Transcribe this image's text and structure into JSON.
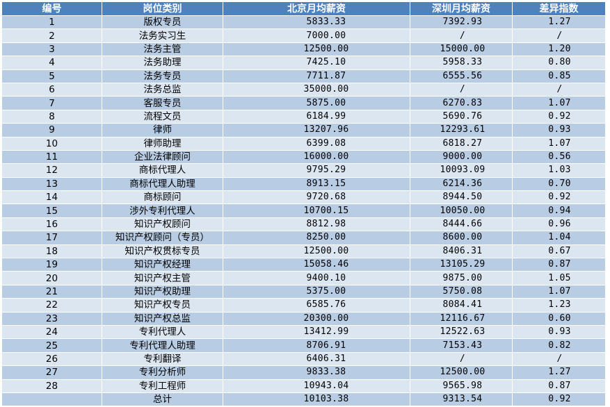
{
  "headers": [
    "编号",
    "岗位类别",
    "北京月均薪资",
    "深圳月均薪资",
    "差异指数"
  ],
  "rows": [
    [
      "1",
      "版权专员",
      "5833.33",
      "7392.93",
      "1.27"
    ],
    [
      "2",
      "法务实习生",
      "7000.00",
      "/",
      "/"
    ],
    [
      "3",
      "法务主管",
      "12500.00",
      "15000.00",
      "1.20"
    ],
    [
      "4",
      "法务助理",
      "7425.10",
      "5958.33",
      "0.80"
    ],
    [
      "5",
      "法务专员",
      "7711.87",
      "6555.56",
      "0.85"
    ],
    [
      "6",
      "法务总监",
      "35000.00",
      "/",
      "/"
    ],
    [
      "7",
      "客服专员",
      "5875.00",
      "6270.83",
      "1.07"
    ],
    [
      "8",
      "流程文员",
      "6184.99",
      "5690.76",
      "0.92"
    ],
    [
      "9",
      "律师",
      "13207.96",
      "12293.61",
      "0.93"
    ],
    [
      "10",
      "律师助理",
      "6399.08",
      "6818.27",
      "1.07"
    ],
    [
      "11",
      "企业法律顾问",
      "16000.00",
      "9000.00",
      "0.56"
    ],
    [
      "12",
      "商标代理人",
      "9795.29",
      "10093.09",
      "1.03"
    ],
    [
      "13",
      "商标代理人助理",
      "8913.15",
      "6214.36",
      "0.70"
    ],
    [
      "14",
      "商标顾问",
      "9720.68",
      "8944.50",
      "0.92"
    ],
    [
      "15",
      "涉外专利代理人",
      "10700.15",
      "10050.00",
      "0.94"
    ],
    [
      "16",
      "知识产权顾问",
      "8812.98",
      "8444.66",
      "0.96"
    ],
    [
      "17",
      "知识产权顾问（专员）",
      "8250.00",
      "8600.00",
      "1.04"
    ],
    [
      "18",
      "知识产权贯标专员",
      "12500.00",
      "8406.31",
      "0.67"
    ],
    [
      "19",
      "知识产权经理",
      "15058.46",
      "13105.29",
      "0.87"
    ],
    [
      "20",
      "知识产权主管",
      "9400.10",
      "9875.00",
      "1.05"
    ],
    [
      "21",
      "知识产权助理",
      "5375.00",
      "5750.08",
      "1.07"
    ],
    [
      "22",
      "知识产权专员",
      "6585.76",
      "8084.41",
      "1.23"
    ],
    [
      "23",
      "知识产权总监",
      "20300.00",
      "12116.67",
      "0.60"
    ],
    [
      "24",
      "专利代理人",
      "13412.99",
      "12522.63",
      "0.93"
    ],
    [
      "25",
      "专利代理人助理",
      "8706.91",
      "7153.43",
      "0.82"
    ],
    [
      "26",
      "专利翻译",
      "6406.31",
      "/",
      "/"
    ],
    [
      "27",
      "专利分析师",
      "9833.38",
      "12500.00",
      "1.27"
    ],
    [
      "28",
      "专利工程师",
      "10943.04",
      "9565.98",
      "0.87"
    ]
  ],
  "total": [
    "",
    "总计",
    "10103.38",
    "9313.54",
    "0.92"
  ]
}
